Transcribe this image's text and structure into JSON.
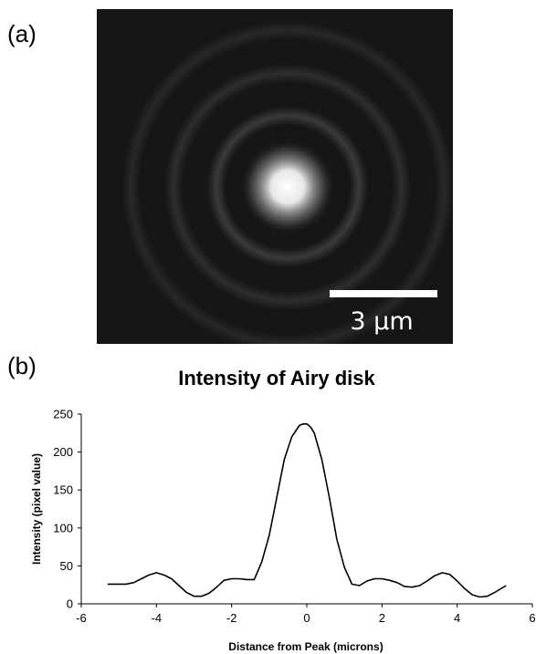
{
  "panels": {
    "a_label": "(a)",
    "b_label": "(b)"
  },
  "image": {
    "scale_bar_label": "3 μm",
    "background": "#161616",
    "spot_color": "#ffffff"
  },
  "chart_data": {
    "type": "line",
    "title": "Intensity of Airy disk",
    "xlabel": "Distance from Peak (microns)",
    "ylabel": "Intensity (pixel value)",
    "xlim": [
      -6,
      6
    ],
    "ylim": [
      0,
      250
    ],
    "xticks": [
      -6,
      -4,
      -2,
      0,
      2,
      4,
      6
    ],
    "yticks": [
      0,
      50,
      100,
      150,
      200,
      250
    ],
    "grid": false,
    "series": [
      {
        "color": "#000000",
        "x": [
          -5.3,
          -5.0,
          -4.8,
          -4.6,
          -4.4,
          -4.2,
          -4.0,
          -3.8,
          -3.6,
          -3.4,
          -3.2,
          -3.0,
          -2.8,
          -2.6,
          -2.4,
          -2.2,
          -2.0,
          -1.8,
          -1.6,
          -1.4,
          -1.2,
          -1.0,
          -0.8,
          -0.6,
          -0.4,
          -0.2,
          -0.1,
          0.0,
          0.1,
          0.2,
          0.4,
          0.6,
          0.8,
          1.0,
          1.2,
          1.4,
          1.6,
          1.8,
          2.0,
          2.2,
          2.4,
          2.6,
          2.8,
          3.0,
          3.2,
          3.4,
          3.6,
          3.8,
          4.0,
          4.2,
          4.4,
          4.6,
          4.8,
          5.0,
          5.3
        ],
        "y": [
          26,
          26,
          26,
          28,
          33,
          38,
          41,
          38,
          33,
          24,
          15,
          10,
          10,
          14,
          22,
          31,
          33,
          33,
          32,
          32,
          55,
          90,
          140,
          190,
          220,
          235,
          237,
          237,
          233,
          225,
          190,
          140,
          85,
          48,
          26,
          24,
          30,
          33,
          33,
          31,
          28,
          23,
          22,
          24,
          30,
          37,
          41,
          39,
          30,
          20,
          12,
          9,
          10,
          15,
          24
        ]
      }
    ]
  }
}
